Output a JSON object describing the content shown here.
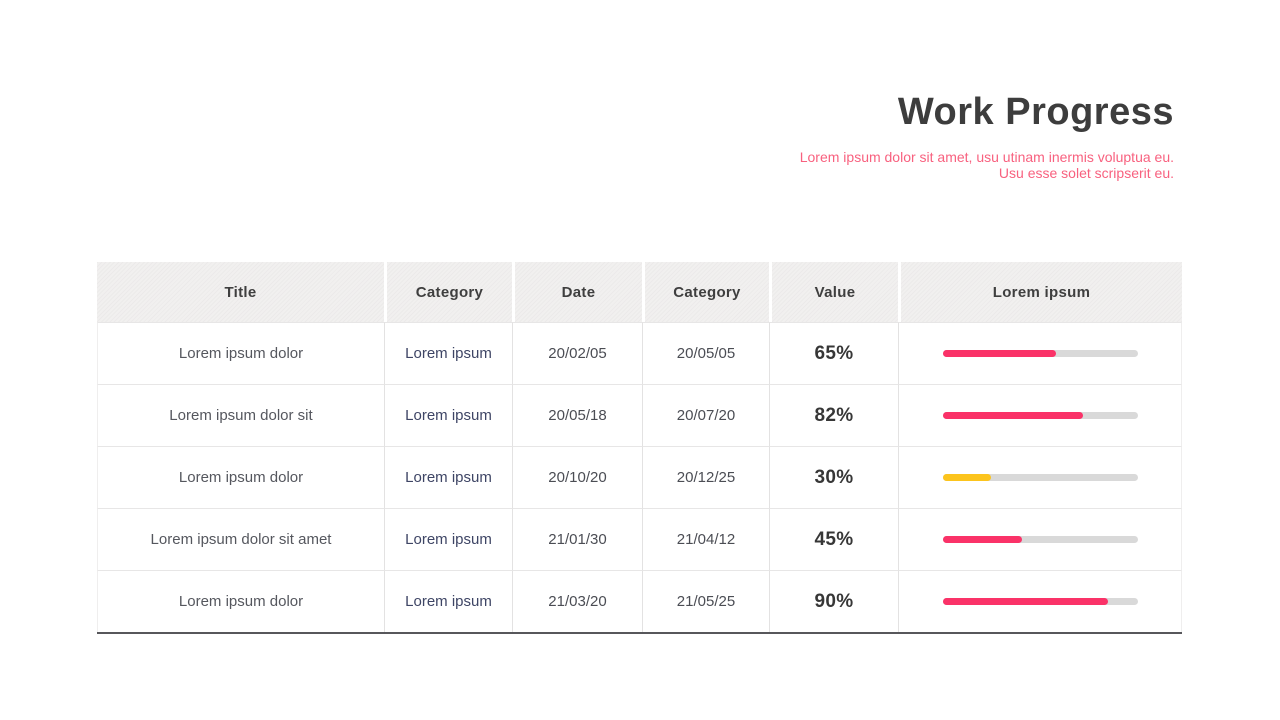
{
  "slide": {
    "title": "Work Progress",
    "subtitle_line1": "Lorem ipsum dolor sit amet, usu utinam inermis voluptua eu.",
    "subtitle_line2": "Usu esse solet scripserit eu."
  },
  "colors": {
    "title_text": "#3d3d3d",
    "subtitle_text": "#f8617f",
    "header_bg": "#f1f0ef",
    "header_text": "#3f3f3f",
    "bar_track": "#d9d9d9",
    "pink": "#fa3268",
    "yellow": "#fcc41d",
    "table_bottom_border": "#57575b"
  },
  "table": {
    "headers": [
      "Title",
      "Category",
      "Date",
      "Category",
      "Value",
      "Lorem ipsum"
    ],
    "rows": [
      {
        "title": "Lorem ipsum dolor",
        "category": "Lorem ipsum",
        "date": "20/02/05",
        "date2": "20/05/05",
        "value": "65%",
        "bar_fill_percent": 58,
        "bar_color": "pink"
      },
      {
        "title": "Lorem ipsum dolor sit",
        "category": "Lorem ipsum",
        "date": "20/05/18",
        "date2": "20/07/20",
        "value": "82%",
        "bar_fill_percent": 72,
        "bar_color": "pink"
      },
      {
        "title": "Lorem ipsum dolor",
        "category": "Lorem ipsum",
        "date": "20/10/20",
        "date2": "20/12/25",
        "value": "30%",
        "bar_fill_percent": 25,
        "bar_color": "yellow"
      },
      {
        "title": "Lorem ipsum dolor sit amet",
        "category": "Lorem ipsum",
        "date": "21/01/30",
        "date2": "21/04/12",
        "value": "45%",
        "bar_fill_percent": 41,
        "bar_color": "pink"
      },
      {
        "title": "Lorem ipsum dolor",
        "category": "Lorem ipsum",
        "date": "21/03/20",
        "date2": "21/05/25",
        "value": "90%",
        "bar_fill_percent": 85,
        "bar_color": "pink"
      }
    ]
  }
}
